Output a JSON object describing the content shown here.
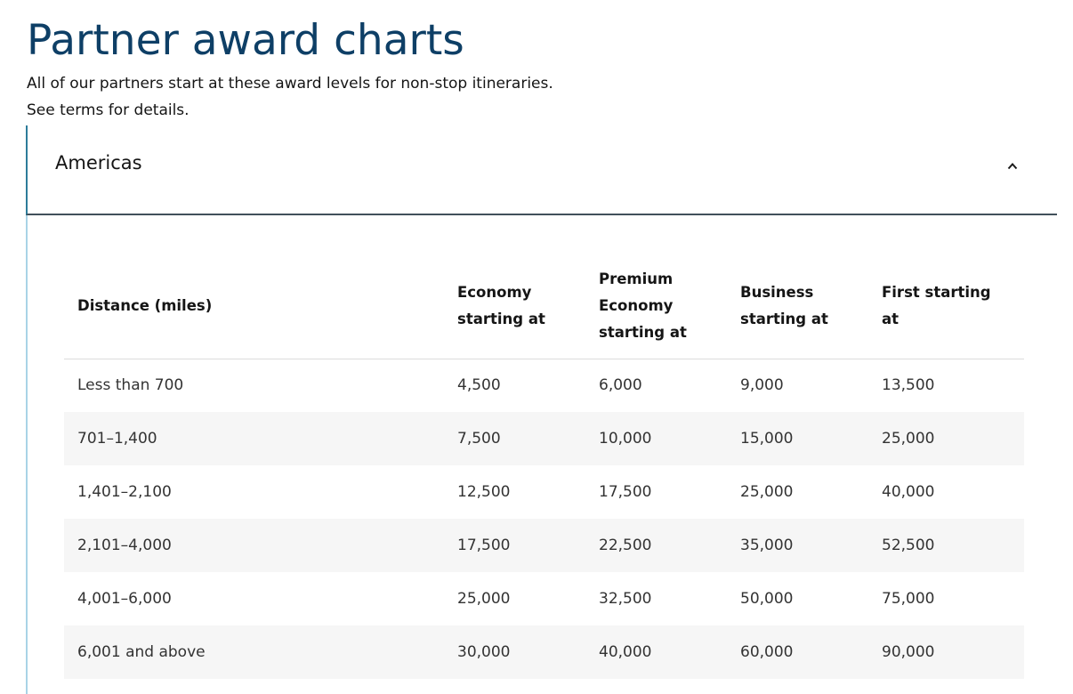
{
  "page": {
    "title": "Partner award charts",
    "intro_line1": "All of our partners start at these award levels for non-stop itineraries.",
    "intro_line2": "See terms for details."
  },
  "accordion": {
    "title": "Americas",
    "expanded": true,
    "toggle_icon": "chevron-up-icon"
  },
  "table": {
    "headers": [
      "Distance (miles)",
      "Economy starting at",
      "Premium Economy starting at",
      "Business starting at",
      "First starting at"
    ],
    "rows": [
      [
        "Less than 700",
        "4,500",
        "6,000",
        "9,000",
        "13,500"
      ],
      [
        "701–1,400",
        "7,500",
        "10,000",
        "15,000",
        "25,000"
      ],
      [
        "1,401–2,100",
        "12,500",
        "17,500",
        "25,000",
        "40,000"
      ],
      [
        "2,101–4,000",
        "17,500",
        "22,500",
        "35,000",
        "52,500"
      ],
      [
        "4,001–6,000",
        "25,000",
        "32,500",
        "50,000",
        "75,000"
      ],
      [
        "6,001 and above",
        "30,000",
        "40,000",
        "60,000",
        "90,000"
      ]
    ]
  },
  "colors": {
    "title": "#0e3f66",
    "accordion_accent": "#2d7c9a",
    "accordion_rail": "#a9d3e6",
    "row_stripe": "#f6f6f6"
  }
}
